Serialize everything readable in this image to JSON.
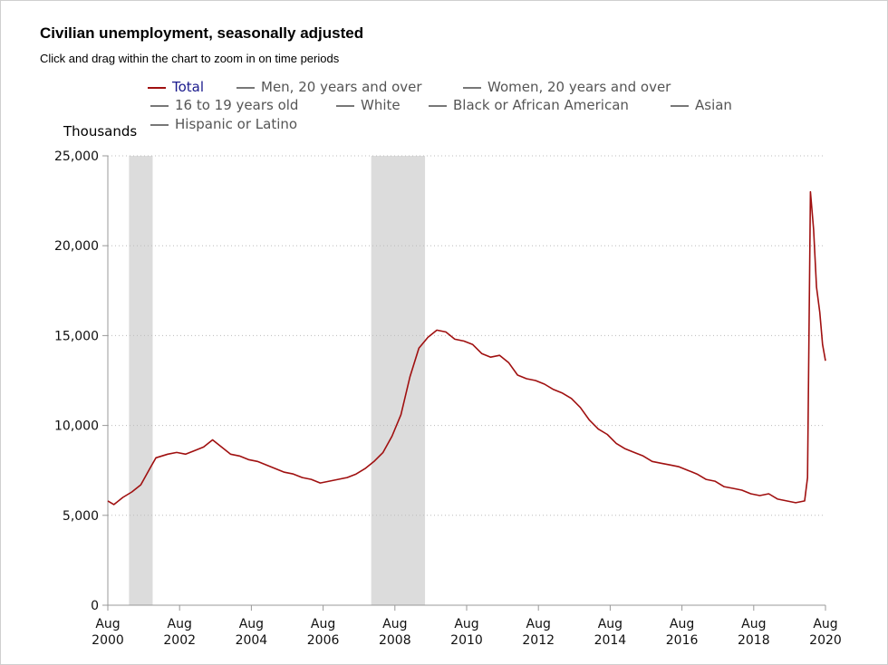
{
  "title": "Civilian unemployment, seasonally adjusted",
  "subtitle": "Click and drag within the chart to zoom in on time periods",
  "legend": [
    {
      "label": "Total",
      "active": true
    },
    {
      "label": "Men, 20 years and over",
      "active": false
    },
    {
      "label": "Women, 20 years and over",
      "active": false
    },
    {
      "label": "16 to 19 years old",
      "active": false
    },
    {
      "label": "White",
      "active": false
    },
    {
      "label": "Black or African American",
      "active": false
    },
    {
      "label": "Asian",
      "active": false
    },
    {
      "label": "Hispanic or Latino",
      "active": false
    }
  ],
  "colors": {
    "series": "#a01010",
    "recession": "#dcdcdc",
    "grid": "#bbbbbb",
    "axis": "#999999"
  },
  "chart_data": {
    "type": "line",
    "title": "Civilian unemployment, seasonally adjusted",
    "ylabel": "Thousands",
    "xlabel": "",
    "ylim": [
      0,
      25000
    ],
    "xlim": [
      2000.58,
      2020.58
    ],
    "y_ticks": [
      {
        "value": 0,
        "label": "0"
      },
      {
        "value": 5000,
        "label": "5,000"
      },
      {
        "value": 10000,
        "label": "10,000"
      },
      {
        "value": 15000,
        "label": "15,000"
      },
      {
        "value": 20000,
        "label": "20,000"
      },
      {
        "value": 25000,
        "label": "25,000"
      }
    ],
    "x_ticks": [
      {
        "value": 2000.58,
        "month": "Aug",
        "year": "2000"
      },
      {
        "value": 2002.58,
        "month": "Aug",
        "year": "2002"
      },
      {
        "value": 2004.58,
        "month": "Aug",
        "year": "2004"
      },
      {
        "value": 2006.58,
        "month": "Aug",
        "year": "2006"
      },
      {
        "value": 2008.58,
        "month": "Aug",
        "year": "2008"
      },
      {
        "value": 2010.58,
        "month": "Aug",
        "year": "2010"
      },
      {
        "value": 2012.58,
        "month": "Aug",
        "year": "2012"
      },
      {
        "value": 2014.58,
        "month": "Aug",
        "year": "2014"
      },
      {
        "value": 2016.58,
        "month": "Aug",
        "year": "2016"
      },
      {
        "value": 2018.58,
        "month": "Aug",
        "year": "2018"
      },
      {
        "value": 2020.58,
        "month": "Aug",
        "year": "2020"
      }
    ],
    "recessions": [
      {
        "start": 2001.17,
        "end": 2001.83
      },
      {
        "start": 2007.92,
        "end": 2009.42
      }
    ],
    "series": [
      {
        "name": "Total",
        "x": [
          2000.58,
          2000.75,
          2001.0,
          2001.25,
          2001.5,
          2001.75,
          2001.92,
          2002.25,
          2002.5,
          2002.75,
          2003.0,
          2003.25,
          2003.5,
          2003.75,
          2004.0,
          2004.25,
          2004.5,
          2004.75,
          2005.0,
          2005.25,
          2005.5,
          2005.75,
          2006.0,
          2006.25,
          2006.5,
          2006.75,
          2007.0,
          2007.25,
          2007.5,
          2007.75,
          2008.0,
          2008.25,
          2008.5,
          2008.75,
          2009.0,
          2009.25,
          2009.5,
          2009.75,
          2010.0,
          2010.25,
          2010.5,
          2010.75,
          2011.0,
          2011.25,
          2011.5,
          2011.75,
          2012.0,
          2012.25,
          2012.5,
          2012.75,
          2013.0,
          2013.25,
          2013.5,
          2013.75,
          2014.0,
          2014.25,
          2014.5,
          2014.75,
          2015.0,
          2015.25,
          2015.5,
          2015.75,
          2016.0,
          2016.25,
          2016.5,
          2016.75,
          2017.0,
          2017.25,
          2017.5,
          2017.75,
          2018.0,
          2018.25,
          2018.5,
          2018.75,
          2019.0,
          2019.25,
          2019.5,
          2019.75,
          2020.0,
          2020.08,
          2020.16,
          2020.25,
          2020.33,
          2020.42,
          2020.5,
          2020.58
        ],
        "values": [
          5800,
          5600,
          6000,
          6300,
          6700,
          7600,
          8200,
          8400,
          8500,
          8400,
          8600,
          8800,
          9200,
          8800,
          8400,
          8300,
          8100,
          8000,
          7800,
          7600,
          7400,
          7300,
          7100,
          7000,
          6800,
          6900,
          7000,
          7100,
          7300,
          7600,
          8000,
          8500,
          9400,
          10600,
          12700,
          14300,
          14900,
          15300,
          15200,
          14800,
          14700,
          14500,
          14000,
          13800,
          13900,
          13500,
          12800,
          12600,
          12500,
          12300,
          12000,
          11800,
          11500,
          11000,
          10300,
          9800,
          9500,
          9000,
          8700,
          8500,
          8300,
          8000,
          7900,
          7800,
          7700,
          7500,
          7300,
          7000,
          6900,
          6600,
          6500,
          6400,
          6200,
          6100,
          6200,
          5900,
          5800,
          5700,
          5800,
          7100,
          23000,
          20900,
          17700,
          16300,
          14500,
          13600
        ]
      }
    ]
  }
}
